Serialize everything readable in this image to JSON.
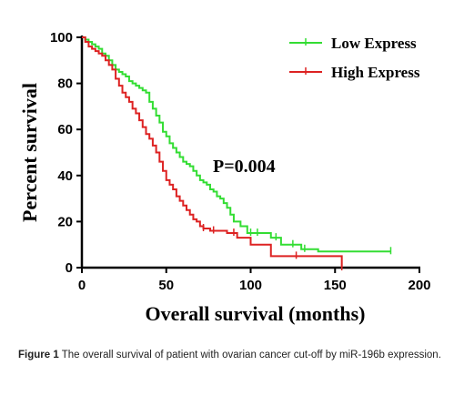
{
  "chart_data": {
    "type": "line",
    "subtype": "kaplan-meier survival curve (step)",
    "ylabel": "Percent survival",
    "xlabel": "Overall survival (months)",
    "xlim": [
      0,
      200
    ],
    "ylim": [
      0,
      100
    ],
    "x_ticks": [
      0,
      50,
      100,
      150,
      200
    ],
    "y_ticks": [
      0,
      20,
      40,
      60,
      80,
      100
    ],
    "grid": false,
    "legend_position": "top-right",
    "annotation": "P=0.004",
    "series": [
      {
        "name": "Low Express",
        "color": "#33dd33",
        "steps": [
          [
            0,
            100
          ],
          [
            2,
            99
          ],
          [
            4,
            98
          ],
          [
            6,
            97
          ],
          [
            8,
            96
          ],
          [
            10,
            95
          ],
          [
            12,
            93
          ],
          [
            14,
            92
          ],
          [
            16,
            90
          ],
          [
            18,
            88
          ],
          [
            20,
            86
          ],
          [
            22,
            85
          ],
          [
            24,
            84
          ],
          [
            26,
            83
          ],
          [
            28,
            81
          ],
          [
            30,
            80
          ],
          [
            32,
            79
          ],
          [
            34,
            78
          ],
          [
            36,
            77
          ],
          [
            38,
            76
          ],
          [
            40,
            72
          ],
          [
            42,
            69
          ],
          [
            44,
            66
          ],
          [
            46,
            63
          ],
          [
            48,
            59
          ],
          [
            50,
            57
          ],
          [
            52,
            54
          ],
          [
            54,
            52
          ],
          [
            56,
            50
          ],
          [
            58,
            48
          ],
          [
            60,
            46
          ],
          [
            62,
            45
          ],
          [
            64,
            44
          ],
          [
            66,
            42
          ],
          [
            68,
            40
          ],
          [
            70,
            38
          ],
          [
            72,
            37
          ],
          [
            74,
            36
          ],
          [
            76,
            34
          ],
          [
            78,
            33
          ],
          [
            80,
            31
          ],
          [
            82,
            30
          ],
          [
            84,
            28
          ],
          [
            86,
            26
          ],
          [
            88,
            23
          ],
          [
            90,
            20
          ],
          [
            94,
            18
          ],
          [
            98,
            15
          ],
          [
            102,
            15
          ],
          [
            106,
            15
          ],
          [
            112,
            13
          ],
          [
            118,
            10
          ],
          [
            124,
            10
          ],
          [
            130,
            8
          ],
          [
            140,
            7
          ],
          [
            150,
            7
          ],
          [
            160,
            7
          ],
          [
            170,
            7
          ],
          [
            183,
            7
          ]
        ],
        "censor_x": [
          100,
          104,
          115,
          125,
          132,
          183
        ]
      },
      {
        "name": "High Express",
        "color": "#dd2222",
        "steps": [
          [
            0,
            100
          ],
          [
            2,
            98
          ],
          [
            4,
            96
          ],
          [
            6,
            95
          ],
          [
            8,
            94
          ],
          [
            10,
            93
          ],
          [
            12,
            92
          ],
          [
            14,
            90
          ],
          [
            16,
            88
          ],
          [
            18,
            86
          ],
          [
            20,
            82
          ],
          [
            22,
            79
          ],
          [
            24,
            76
          ],
          [
            26,
            74
          ],
          [
            28,
            72
          ],
          [
            30,
            69
          ],
          [
            32,
            67
          ],
          [
            34,
            64
          ],
          [
            36,
            61
          ],
          [
            38,
            58
          ],
          [
            40,
            56
          ],
          [
            42,
            53
          ],
          [
            44,
            50
          ],
          [
            46,
            46
          ],
          [
            48,
            42
          ],
          [
            50,
            38
          ],
          [
            52,
            36
          ],
          [
            54,
            34
          ],
          [
            56,
            31
          ],
          [
            58,
            29
          ],
          [
            60,
            27
          ],
          [
            62,
            25
          ],
          [
            64,
            23
          ],
          [
            66,
            21
          ],
          [
            68,
            20
          ],
          [
            70,
            18
          ],
          [
            72,
            17
          ],
          [
            76,
            16
          ],
          [
            80,
            16
          ],
          [
            86,
            15
          ],
          [
            92,
            13
          ],
          [
            100,
            10
          ],
          [
            112,
            5
          ],
          [
            120,
            5
          ],
          [
            130,
            5
          ],
          [
            140,
            5
          ],
          [
            150,
            5
          ],
          [
            154,
            0
          ]
        ],
        "censor_x": [
          72,
          78,
          90,
          127,
          154
        ]
      }
    ]
  },
  "caption": {
    "label": "Figure 1",
    "text": " The overall survival of patient with ovarian cancer cut-off by miR-196b expression."
  }
}
